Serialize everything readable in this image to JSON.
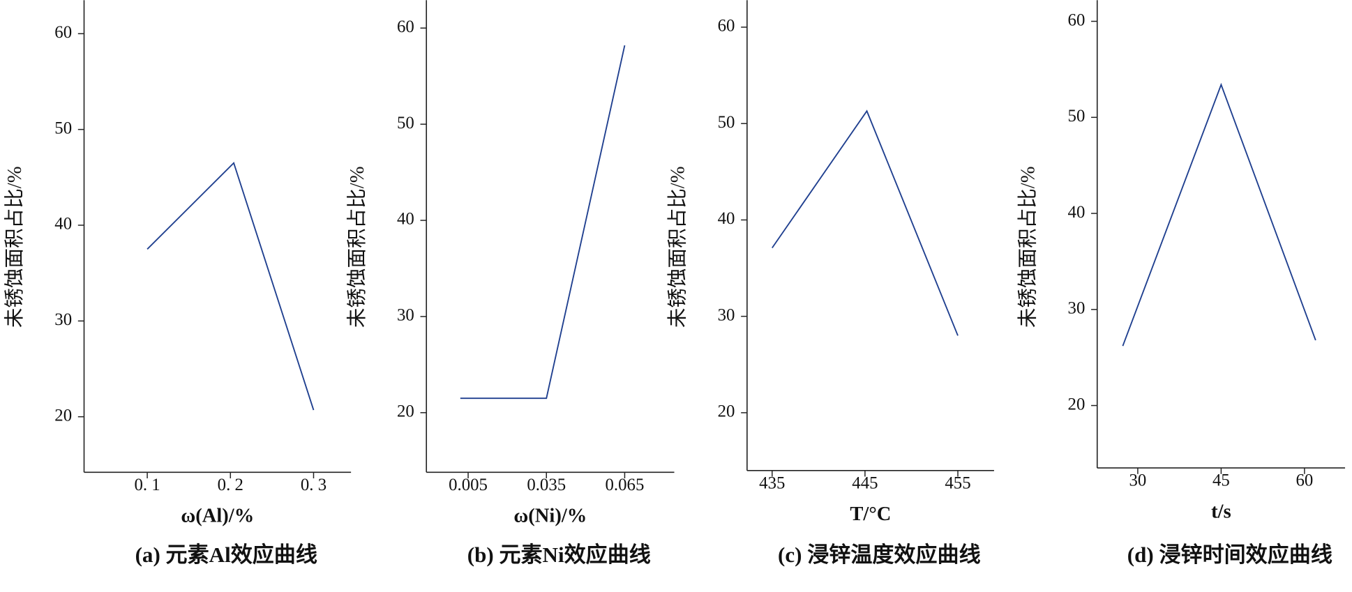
{
  "chart_data": [
    {
      "type": "line",
      "caption": "(a) 元素Al效应曲线",
      "xlabel": "ω(Al)/%",
      "ylabel": "未锈蚀面积占比/%",
      "x": [
        0.1,
        0.204,
        0.3
      ],
      "series": [
        {
          "color": "#1f3f8f",
          "values": [
            37.5,
            46.5,
            20.7
          ]
        }
      ],
      "xlim": [
        0.024,
        0.345
      ],
      "xticks": [
        {
          "value": 0.1,
          "label": "0. 1"
        },
        {
          "value": 0.2,
          "label": "0. 2"
        },
        {
          "value": 0.3,
          "label": "0. 3"
        }
      ],
      "ylim": [
        14.2,
        63.5
      ],
      "yticks": [
        20,
        30,
        40,
        50,
        60
      ]
    },
    {
      "type": "line",
      "caption": "(b) 元素Ni效应曲线",
      "xlabel": "ω(Ni)/%",
      "ylabel": "未锈蚀面积占比/%",
      "x": [
        0.002,
        0.035,
        0.065
      ],
      "series": [
        {
          "color": "#1f3f8f",
          "values": [
            21.5,
            21.5,
            58.2
          ]
        }
      ],
      "xlim": [
        -0.011,
        0.084
      ],
      "xticks": [
        0.005,
        0.035,
        0.065
      ],
      "ylim": [
        13.8,
        62.9
      ],
      "yticks": [
        20,
        30,
        40,
        50,
        60
      ]
    },
    {
      "type": "line",
      "caption": "(c) 浸锌温度效应曲线",
      "xlabel": "T/°C",
      "ylabel": "未锈蚀面积占比/%",
      "x": [
        435,
        445.2,
        455
      ],
      "series": [
        {
          "color": "#1f3f8f",
          "values": [
            37.1,
            51.3,
            28.0
          ]
        }
      ],
      "xlim": [
        432.3,
        458.9
      ],
      "xticks": [
        435,
        445,
        455
      ],
      "ylim": [
        14.0,
        62.8
      ],
      "yticks": [
        20,
        30,
        40,
        50,
        60
      ]
    },
    {
      "type": "line",
      "caption": "(d) 浸锌时间效应曲线",
      "xlabel": "t/s",
      "ylabel": "未锈蚀面积占比/%",
      "x": [
        27.3,
        45,
        62
      ],
      "series": [
        {
          "color": "#1f3f8f",
          "values": [
            26.2,
            53.4,
            26.8
          ]
        }
      ],
      "xlim": [
        22.7,
        67.3
      ],
      "xticks": [
        30,
        45,
        60
      ],
      "ylim": [
        13.5,
        62.2
      ],
      "yticks": [
        20,
        30,
        40,
        50,
        60
      ]
    }
  ]
}
